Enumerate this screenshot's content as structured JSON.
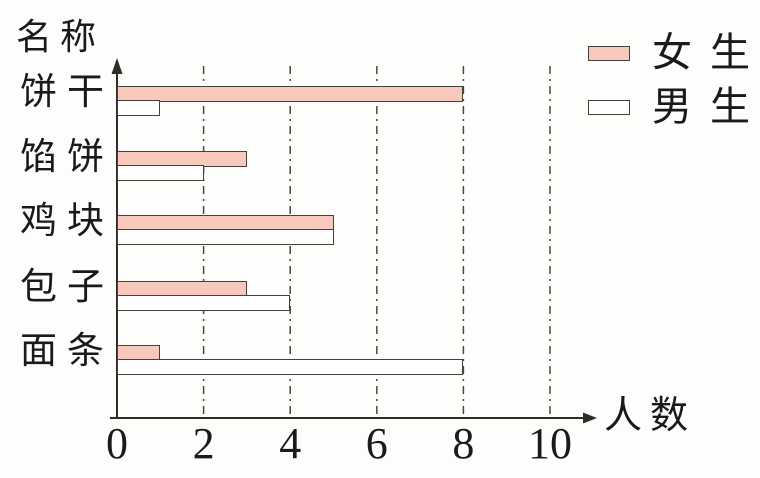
{
  "chart_data": {
    "type": "bar",
    "orientation": "horizontal",
    "title": "",
    "ylabel": "名称",
    "xlabel": "人数",
    "categories": [
      "饼干",
      "馅饼",
      "鸡块",
      "包子",
      "面条"
    ],
    "series": [
      {
        "name": "女生",
        "key": "girls",
        "color": "#f7c8bc",
        "values": [
          8,
          3,
          5,
          3,
          1
        ]
      },
      {
        "name": "男生",
        "key": "boys",
        "color": "#ffffff",
        "values": [
          1,
          2,
          5,
          4,
          8
        ]
      }
    ],
    "x_ticks": [
      0,
      2,
      4,
      6,
      8,
      10
    ],
    "xlim": [
      0,
      11
    ],
    "grid": "vertical dashed lines at ticks 2,4,6,8,10",
    "legend_position": "top-right",
    "bar_outline_color": "#45403a",
    "axis_color": "#2e2c29",
    "text_color": "#1c1a18"
  }
}
